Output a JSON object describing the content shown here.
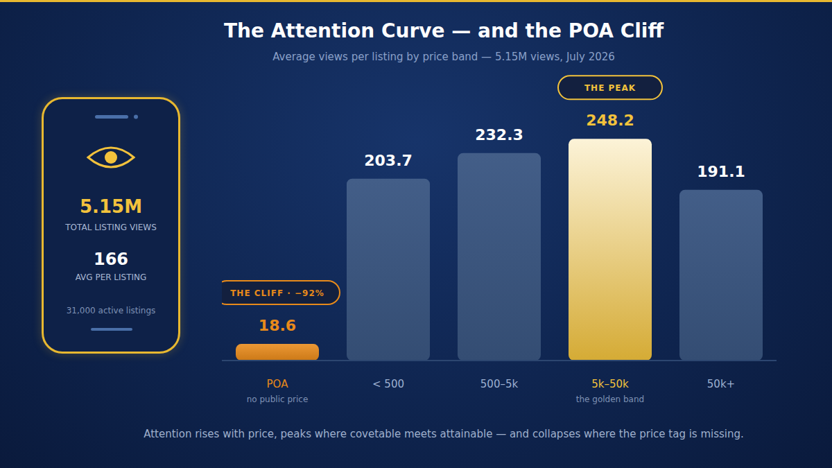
{
  "title": "The Attention Curve — and the POA Cliff",
  "subtitle": "Average views per listing by price band — 5.15M views, July 2026",
  "footer": "Attention rises with price, peaks where covetable meets attainable — and collapses where the price tag is missing.",
  "panel": {
    "total_value": "5.15M",
    "total_label": "TOTAL LISTING VIEWS",
    "avg_value": "166",
    "avg_label": "AVG PER LISTING",
    "note": "31,000 active listings"
  },
  "chart_data": {
    "type": "bar",
    "categories": [
      "POA",
      "< 500",
      "500–5k",
      "5k–50k",
      "50k+"
    ],
    "sublabels": [
      "no public price",
      null,
      null,
      "the golden band",
      null
    ],
    "values": [
      18.6,
      203.7,
      232.3,
      248.2,
      191.1
    ],
    "color": "#3b5783",
    "colors": [
      "#e88a1a",
      "#3b5783",
      "#3b5783",
      "#f2c23c",
      "#3b5783"
    ],
    "ylim": [
      0,
      250
    ],
    "data_labels": true,
    "tick_labels": "x",
    "grid": false,
    "annotations": [
      {
        "category": "POA",
        "text": "THE CLIFF · −92%"
      },
      {
        "category": "5k–50k",
        "text": "THE PEAK"
      }
    ]
  }
}
